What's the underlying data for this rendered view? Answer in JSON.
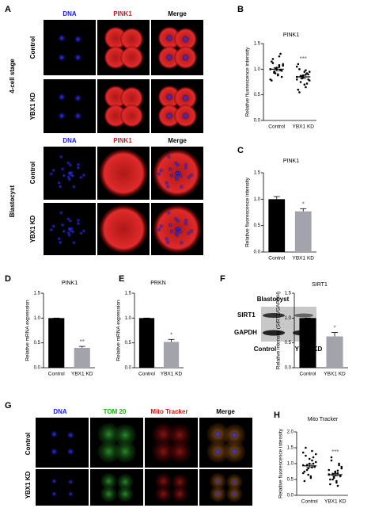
{
  "figure": {
    "panels": [
      "A",
      "B",
      "C",
      "D",
      "E",
      "F",
      "G",
      "H"
    ],
    "a_columns": [
      "DNA",
      "PINK1",
      "Merge"
    ],
    "a_stages": [
      "4-cell stage",
      "Blastocyst"
    ],
    "a_rows": [
      "Control",
      "YBX1 KD"
    ],
    "blot": {
      "title": "Blastocyst",
      "bands": [
        "SIRT1",
        "GAPDH"
      ],
      "lanes": [
        "Control",
        "YBX1 KD"
      ]
    },
    "g_columns": [
      "DNA",
      "TOM 20",
      "Mito Tracker",
      "Merge"
    ],
    "g_rows": [
      "Control",
      "YBX1 KD"
    ]
  },
  "chart_data": [
    {
      "type": "scatter",
      "title": "PINK1",
      "y_label": "Relative fluorescence intensity",
      "categories": [
        "Control",
        "YBX1 KD"
      ],
      "points": [
        [
          1.0,
          1.05,
          0.95,
          1.1,
          0.9,
          1.2,
          0.85,
          1.0,
          1.15,
          0.98,
          1.02,
          0.8,
          1.25,
          0.93,
          1.07,
          0.88,
          1.12,
          0.97,
          1.03,
          0.78,
          1.3,
          0.92,
          1.0,
          1.08
        ],
        [
          0.85,
          0.9,
          0.75,
          0.95,
          0.7,
          1.0,
          0.8,
          0.88,
          0.6,
          0.92,
          0.82,
          1.05,
          0.65,
          0.87,
          0.78,
          0.95,
          0.55,
          0.9,
          0.84,
          1.1,
          0.72,
          0.86,
          0.8,
          0.98
        ]
      ],
      "means": [
        1.0,
        0.85
      ],
      "errors": [
        0.03,
        0.03
      ],
      "annotation": "***",
      "ylim": [
        0,
        1.5
      ],
      "yticks": [
        {
          "value": 0,
          "label": "0.0"
        },
        0.5,
        {
          "value": 1,
          "label": "1.0"
        },
        1.5
      ]
    },
    {
      "type": "bar",
      "title": "PINK1",
      "y_label": "Relative fluorescence intensity",
      "categories": [
        "Control",
        "YBX1 KD"
      ],
      "values": [
        1.0,
        0.77
      ],
      "errors": [
        0.05,
        0.05
      ],
      "colors": [
        "#000000",
        "#a3a3ab"
      ],
      "annotation": "*",
      "ylim": [
        0,
        1.5
      ],
      "yticks": [
        {
          "value": 0,
          "label": "0.0"
        },
        0.5,
        {
          "value": 1,
          "label": "1.0"
        },
        1.5
      ]
    },
    {
      "type": "bar",
      "title": "PINK1",
      "y_label": "Relative mRNA expression",
      "categories": [
        "Control",
        "YBX1 KD"
      ],
      "values": [
        1.0,
        0.4
      ],
      "errors": [
        0,
        0.03
      ],
      "colors": [
        "#000000",
        "#a3a3ab"
      ],
      "annotation": "**",
      "ylim": [
        0,
        1.5
      ],
      "yticks": [
        {
          "value": 0,
          "label": "0.0"
        },
        0.5,
        {
          "value": 1,
          "label": "1.0"
        },
        1.5
      ]
    },
    {
      "type": "bar",
      "title": "PRKN",
      "y_label": "Relative mRNA expression",
      "categories": [
        "Control",
        "YBX1 KD"
      ],
      "values": [
        1.0,
        0.52
      ],
      "errors": [
        0,
        0.05
      ],
      "colors": [
        "#000000",
        "#a3a3ab"
      ],
      "annotation": "*",
      "ylim": [
        0,
        1.5
      ],
      "yticks": [
        {
          "value": 0,
          "label": "0.0"
        },
        0.5,
        {
          "value": 1,
          "label": "1.0"
        },
        1.5
      ]
    },
    {
      "type": "bar",
      "title": "SIRT1",
      "y_label": "Relative intensity (SIRT1/GAPDH)",
      "categories": [
        "Control",
        "YBX1 KD"
      ],
      "values": [
        1.0,
        0.63
      ],
      "errors": [
        0,
        0.08
      ],
      "colors": [
        "#000000",
        "#a3a3ab"
      ],
      "annotation": "*",
      "ylim": [
        0,
        1.5
      ],
      "yticks": [
        {
          "value": 0,
          "label": "0.0"
        },
        0.5,
        {
          "value": 1,
          "label": "1.0"
        },
        1.5
      ]
    },
    {
      "type": "scatter",
      "title": "Mito Tracker",
      "y_label": "Relative fluorescence intensity",
      "categories": [
        "Control",
        "YBX1 KD"
      ],
      "points": [
        [
          0.95,
          1.1,
          0.8,
          1.3,
          0.6,
          1.5,
          0.9,
          1.0,
          0.45,
          1.2,
          0.85,
          0.7,
          1.4,
          0.95,
          1.05,
          0.55,
          1.25,
          0.9,
          1.15,
          0.75,
          1.0,
          0.65,
          1.35,
          0.88
        ],
        [
          0.65,
          0.7,
          0.5,
          0.9,
          0.4,
          1.2,
          0.6,
          0.75,
          0.35,
          1.0,
          0.55,
          0.8,
          0.3,
          0.68,
          0.85,
          0.45,
          1.1,
          0.62,
          0.72,
          0.5,
          0.95,
          0.58,
          0.66,
          0.78
        ]
      ],
      "means": [
        0.93,
        0.65
      ],
      "errors": [
        0.05,
        0.04
      ],
      "annotation": "***",
      "ylim": [
        0,
        2
      ],
      "yticks": [
        {
          "value": 0,
          "label": "0.0"
        },
        0.5,
        {
          "value": 1,
          "label": "1.0"
        },
        1.5,
        {
          "value": 2,
          "label": "2.0"
        }
      ]
    }
  ]
}
